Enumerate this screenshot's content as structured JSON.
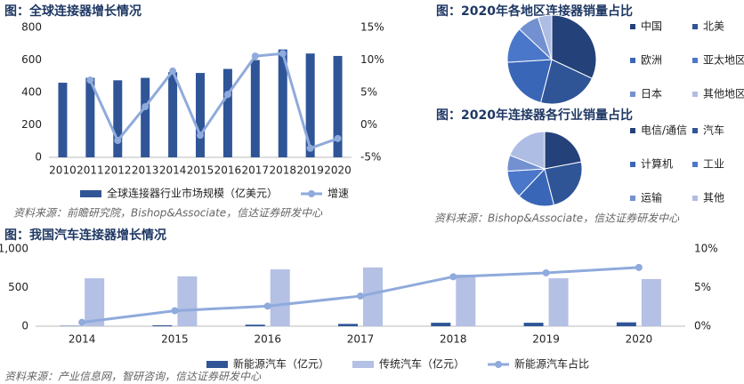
{
  "chart_data": [
    {
      "type": "bar",
      "title": "图：全球连接器增长情况",
      "source": "资料来源：前瞻研究院，Bishop&Associate，信达证券研发中心",
      "categories": [
        "2010",
        "2011",
        "2012",
        "2013",
        "2014",
        "2015",
        "2016",
        "2017",
        "2018",
        "2019",
        "2020"
      ],
      "series": [
        {
          "name": "全球连接器行业市场规模（亿美元）",
          "type": "bar",
          "color": "#2f5597",
          "values": [
            460,
            490,
            475,
            490,
            525,
            520,
            545,
            600,
            665,
            640,
            625
          ]
        },
        {
          "name": "增速",
          "type": "line",
          "axis": "y2",
          "color": "#8faadc",
          "values": [
            null,
            6.9,
            -2.4,
            2.8,
            8.3,
            -1.6,
            4.7,
            10.6,
            11.0,
            -3.6,
            -2.1
          ]
        }
      ],
      "ylim": [
        0,
        800
      ],
      "yticks": [
        0,
        200,
        400,
        600,
        800
      ],
      "y2lim": [
        -5,
        15
      ],
      "y2ticks": [
        {
          "value": -5,
          "label": "-5%"
        },
        {
          "value": 0,
          "label": "0%"
        },
        {
          "value": 5,
          "label": "5%"
        },
        {
          "value": 10,
          "label": "10%"
        },
        {
          "value": 15,
          "label": "15%"
        }
      ]
    },
    {
      "type": "pie",
      "title": "图：2020年各地区连接器销量占比",
      "categories": [
        "中国",
        "北美",
        "欧洲",
        "亚太地区",
        "日本",
        "其他地区"
      ],
      "values": [
        32,
        22,
        20,
        13,
        8,
        5
      ],
      "colors": [
        "#24417a",
        "#2f5597",
        "#3a66b8",
        "#4a77c9",
        "#7391d1",
        "#aebde3"
      ]
    },
    {
      "type": "pie",
      "title": "图：2020年连接器各行业销量占比",
      "source": "资料来源：Bishop&Associate，信达证券研发中心",
      "categories": [
        "电信/通信",
        "汽车",
        "计算机",
        "工业",
        "运输",
        "其他"
      ],
      "values": [
        22,
        24,
        16,
        12,
        7,
        19
      ],
      "colors": [
        "#24417a",
        "#2f5597",
        "#3a66b8",
        "#4a77c9",
        "#7391d1",
        "#aebde3"
      ]
    },
    {
      "type": "bar",
      "title": "图：我国汽车连接器增长情况",
      "source": "资料来源：产业信息网，智研咨询，信达证券研发中心",
      "categories": [
        "2014",
        "2015",
        "2016",
        "2017",
        "2018",
        "2019",
        "2020"
      ],
      "series": [
        {
          "name": "新能源汽车（亿元）",
          "type": "bar",
          "color": "#2f5597",
          "values": [
            5,
            12,
            20,
            30,
            45,
            45,
            50
          ]
        },
        {
          "name": "传统汽车（亿元）",
          "type": "bar",
          "color": "#b4c0e4",
          "values": [
            620,
            645,
            735,
            760,
            667,
            620,
            610
          ]
        },
        {
          "name": "新能源汽车占比",
          "type": "line",
          "axis": "y2",
          "color": "#8faadc",
          "values": [
            0.5,
            2.0,
            2.6,
            3.9,
            6.4,
            6.9,
            7.6
          ]
        }
      ],
      "ylim": [
        0,
        1000
      ],
      "yticks": [
        0,
        500,
        {
          "value": 1000,
          "label": "1,000"
        }
      ],
      "y2lim": [
        0,
        10
      ],
      "y2ticks": [
        {
          "value": 0,
          "label": "0%"
        },
        {
          "value": 5,
          "label": "5%"
        },
        {
          "value": 10,
          "label": "10%"
        }
      ]
    }
  ]
}
